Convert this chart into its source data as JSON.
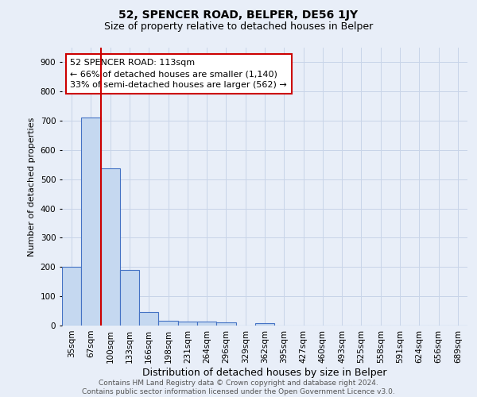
{
  "title": "52, SPENCER ROAD, BELPER, DE56 1JY",
  "subtitle": "Size of property relative to detached houses in Belper",
  "xlabel": "Distribution of detached houses by size in Belper",
  "ylabel": "Number of detached properties",
  "categories": [
    "35sqm",
    "67sqm",
    "100sqm",
    "133sqm",
    "166sqm",
    "198sqm",
    "231sqm",
    "264sqm",
    "296sqm",
    "329sqm",
    "362sqm",
    "395sqm",
    "427sqm",
    "460sqm",
    "493sqm",
    "525sqm",
    "558sqm",
    "591sqm",
    "624sqm",
    "656sqm",
    "689sqm"
  ],
  "bar_values": [
    202,
    712,
    537,
    191,
    46,
    17,
    14,
    13,
    10,
    0,
    8,
    0,
    0,
    0,
    0,
    0,
    0,
    0,
    0,
    0,
    0
  ],
  "bar_color": "#c5d8f0",
  "bar_edge_color": "#4472c4",
  "bar_edge_width": 0.8,
  "red_line_color": "#cc0000",
  "annotation_line1": "52 SPENCER ROAD: 113sqm",
  "annotation_line2": "← 66% of detached houses are smaller (1,140)",
  "annotation_line3": "33% of semi-detached houses are larger (562) →",
  "annotation_box_color": "white",
  "annotation_box_edge_color": "#cc0000",
  "ylim": [
    0,
    950
  ],
  "yticks": [
    0,
    100,
    200,
    300,
    400,
    500,
    600,
    700,
    800,
    900
  ],
  "grid_color": "#c8d4e8",
  "bg_color": "#e8eef8",
  "footer_line1": "Contains HM Land Registry data © Crown copyright and database right 2024.",
  "footer_line2": "Contains public sector information licensed under the Open Government Licence v3.0.",
  "title_fontsize": 10,
  "subtitle_fontsize": 9,
  "xlabel_fontsize": 9,
  "ylabel_fontsize": 8,
  "tick_fontsize": 7.5,
  "annotation_fontsize": 8,
  "footer_fontsize": 6.5
}
